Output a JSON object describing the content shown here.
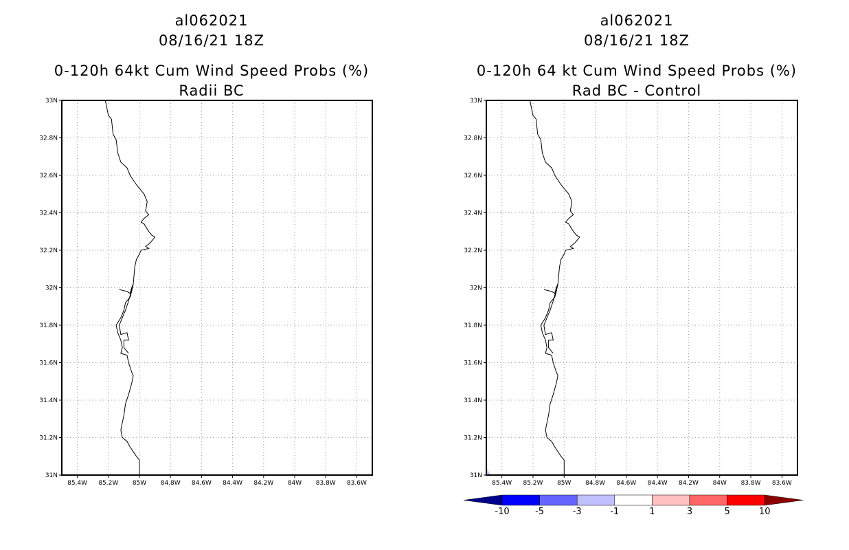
{
  "left_panel": {
    "storm_id": "al062021",
    "datetime": "08/16/21 18Z",
    "product": "0-120h 64kt Cum Wind Speed Probs (%)",
    "subtitle": "Radii BC"
  },
  "right_panel": {
    "storm_id": "al062021",
    "datetime": "08/16/21 18Z",
    "product": "0-120h 64 kt Cum Wind Speed Probs (%)",
    "subtitle": "Rad BC - Control"
  },
  "axes": {
    "lat_labels": [
      "33N",
      "32.8N",
      "32.6N",
      "32.4N",
      "32.2N",
      "32N",
      "31.8N",
      "31.6N",
      "31.4N",
      "31.2N",
      "31N"
    ],
    "lon_labels": [
      "85.4W",
      "85.2W",
      "85W",
      "84.8W",
      "84.6W",
      "84.4W",
      "84.2W",
      "84W",
      "83.8W",
      "83.6W"
    ]
  },
  "map_data": {
    "lat_range": [
      31.0,
      33.0
    ],
    "lon_range": [
      -85.5,
      -83.5
    ],
    "coastline_lonlat": [
      [
        -85.22,
        33.0
      ],
      [
        -85.2,
        32.92
      ],
      [
        -85.18,
        32.9
      ],
      [
        -85.17,
        32.82
      ],
      [
        -85.15,
        32.79
      ],
      [
        -85.14,
        32.72
      ],
      [
        -85.12,
        32.67
      ],
      [
        -85.08,
        32.64
      ],
      [
        -85.06,
        32.6
      ],
      [
        -85.02,
        32.55
      ],
      [
        -84.97,
        32.5
      ],
      [
        -84.95,
        32.46
      ],
      [
        -84.96,
        32.41
      ],
      [
        -84.94,
        32.39
      ],
      [
        -84.97,
        32.37
      ],
      [
        -84.99,
        32.35
      ],
      [
        -84.97,
        32.34
      ],
      [
        -84.94,
        32.3
      ],
      [
        -84.92,
        32.28
      ],
      [
        -84.9,
        32.27
      ],
      [
        -84.93,
        32.24
      ],
      [
        -84.96,
        32.22
      ],
      [
        -84.94,
        32.21
      ],
      [
        -84.99,
        32.2
      ],
      [
        -85.0,
        32.18
      ],
      [
        -85.02,
        32.15
      ],
      [
        -85.03,
        32.11
      ],
      [
        -85.04,
        32.02
      ],
      [
        -85.05,
        31.98
      ],
      [
        -85.06,
        31.95
      ],
      [
        -85.09,
        31.92
      ],
      [
        -85.1,
        31.88
      ],
      [
        -85.12,
        31.84
      ],
      [
        -85.15,
        31.8
      ],
      [
        -85.14,
        31.76
      ],
      [
        -85.12,
        31.72
      ],
      [
        -85.11,
        31.68
      ],
      [
        -85.12,
        31.65
      ],
      [
        -85.08,
        31.64
      ],
      [
        -85.07,
        31.6
      ],
      [
        -85.05,
        31.55
      ],
      [
        -85.04,
        31.53
      ],
      [
        -85.05,
        31.49
      ],
      [
        -85.07,
        31.43
      ],
      [
        -85.09,
        31.38
      ],
      [
        -85.1,
        31.32
      ],
      [
        -85.11,
        31.28
      ],
      [
        -85.12,
        31.24
      ],
      [
        -85.11,
        31.2
      ],
      [
        -85.08,
        31.18
      ],
      [
        -85.06,
        31.15
      ],
      [
        -85.02,
        31.1
      ],
      [
        -85.0,
        31.08
      ],
      [
        -85.0,
        31.0
      ]
    ],
    "inner_loop_lonlat": [
      [
        -85.13,
        31.99
      ],
      [
        -85.08,
        31.98
      ],
      [
        -85.06,
        31.97
      ],
      [
        -85.05,
        32.0
      ],
      [
        -85.04,
        32.02
      ],
      [
        -85.07,
        31.93
      ],
      [
        -85.09,
        31.88
      ],
      [
        -85.11,
        31.84
      ],
      [
        -85.13,
        31.8
      ],
      [
        -85.12,
        31.75
      ],
      [
        -85.08,
        31.76
      ],
      [
        -85.07,
        31.72
      ],
      [
        -85.1,
        31.72
      ],
      [
        -85.1,
        31.68
      ],
      [
        -85.07,
        31.65
      ]
    ]
  },
  "colorbar": {
    "labels": [
      "-10",
      "-5",
      "-3",
      "-1",
      "1",
      "3",
      "5",
      "10"
    ],
    "colors": [
      "#00008b",
      "#0000ff",
      "#6666ff",
      "#c0c0ff",
      "#ffffff",
      "#ffc0c0",
      "#ff6666",
      "#ff0000",
      "#8b0000"
    ]
  }
}
